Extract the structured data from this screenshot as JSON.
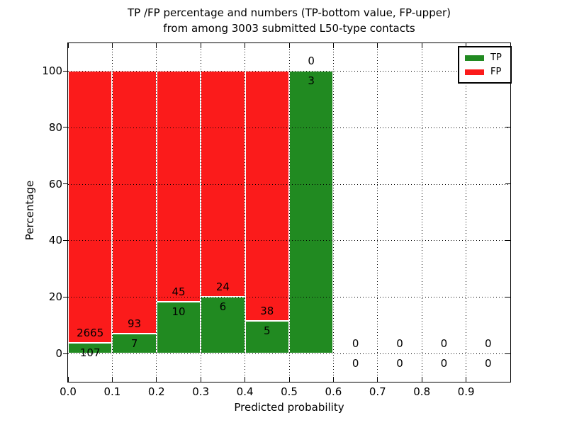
{
  "title": {
    "line1": "TP /FP percentage and numbers (TP-bottom value, FP-upper)",
    "line2": "from among 3003 submitted L50-type contacts"
  },
  "axes": {
    "xlabel": "Predicted probability",
    "ylabel": "Percentage",
    "xtick_labels": [
      "0.0",
      "0.1",
      "0.2",
      "0.3",
      "0.4",
      "0.5",
      "0.6",
      "0.7",
      "0.8",
      "0.9"
    ],
    "ytick_values": [
      0,
      20,
      40,
      60,
      80,
      100
    ]
  },
  "legend": {
    "position": "upper-right",
    "items": [
      {
        "label": "TP",
        "color": "#218A21"
      },
      {
        "label": "FP",
        "color": "#FB1B1B"
      }
    ]
  },
  "chart_data": {
    "type": "bar",
    "stacked": true,
    "normalized_to_percent": true,
    "title": "TP /FP percentage and numbers (TP-bottom value, FP-upper) from among 3003 submitted L50-type contacts",
    "xlabel": "Predicted probability",
    "ylabel": "Percentage",
    "bin_edges": [
      0.0,
      0.1,
      0.2,
      0.3,
      0.4,
      0.5,
      0.6,
      0.7,
      0.8,
      0.9,
      1.0
    ],
    "series": [
      {
        "name": "TP",
        "color": "#218A21",
        "counts": [
          107,
          7,
          10,
          6,
          5,
          3,
          0,
          0,
          0,
          0
        ]
      },
      {
        "name": "FP",
        "color": "#FB1B1B",
        "counts": [
          2665,
          93,
          45,
          24,
          38,
          0,
          0,
          0,
          0,
          0
        ]
      }
    ],
    "tp_percent_per_bin": [
      3.86,
      7.0,
      18.18,
      20.0,
      11.63,
      100.0,
      0,
      0,
      0,
      0
    ],
    "total_submitted": 3003,
    "xlim": [
      0.0,
      1.0
    ],
    "ylim": [
      -10,
      110
    ],
    "grid": true,
    "legend_position": "upper right"
  }
}
